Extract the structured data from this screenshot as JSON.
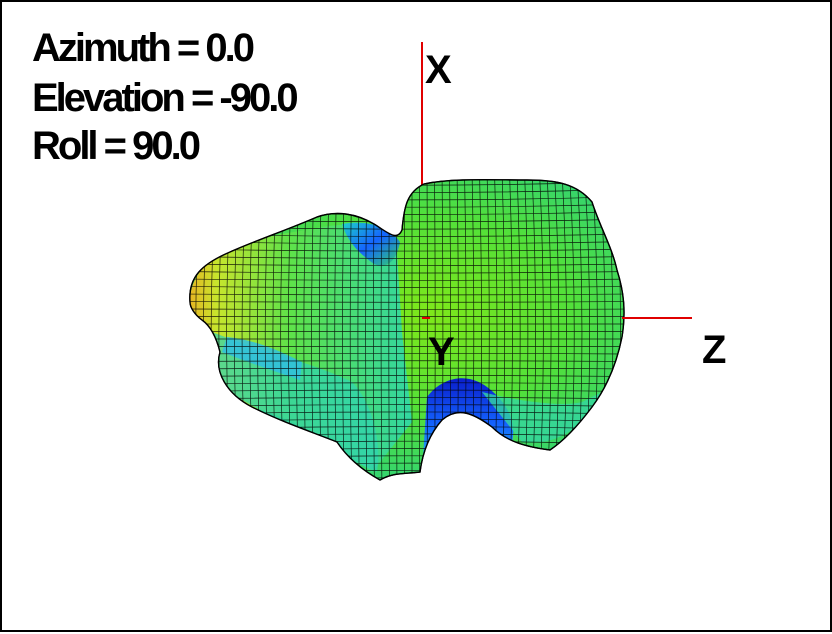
{
  "view": {
    "azimuth_label": "Azimuth = 0.0",
    "elevation_label": "Elevation = -90.0",
    "roll_label": "Roll = 90.0"
  },
  "axes": {
    "x_label": "X",
    "y_label": "Y",
    "z_label": "Z",
    "axis_color": "#e00000"
  },
  "surface": {
    "colormap": [
      "#0000c8",
      "#1e8cff",
      "#28dcdc",
      "#46e646",
      "#8ce61e",
      "#dcdc1e",
      "#f0b41e"
    ],
    "mesh_color": "#000000"
  }
}
